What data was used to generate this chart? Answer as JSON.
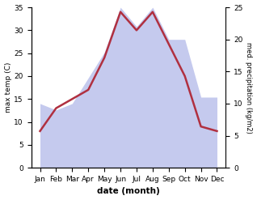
{
  "months": [
    "Jan",
    "Feb",
    "Mar",
    "Apr",
    "May",
    "Jun",
    "Jul",
    "Aug",
    "Sep",
    "Oct",
    "Nov",
    "Dec"
  ],
  "temperature": [
    8,
    13,
    15,
    17,
    24,
    34,
    30,
    34,
    27,
    20,
    9,
    8
  ],
  "precipitation": [
    10,
    9,
    10,
    14,
    18,
    25,
    22,
    25,
    20,
    20,
    11,
    11
  ],
  "temp_color": "#b03040",
  "precip_fill_color": "#c5caee",
  "temp_ylim": [
    0,
    35
  ],
  "precip_ylim": [
    0,
    25
  ],
  "temp_yticks": [
    0,
    5,
    10,
    15,
    20,
    25,
    30,
    35
  ],
  "precip_yticks": [
    0,
    5,
    10,
    15,
    20,
    25
  ],
  "xlabel": "date (month)",
  "ylabel_left": "max temp (C)",
  "ylabel_right": "med. precipitation (kg/m2)",
  "bg_color": "#ffffff"
}
